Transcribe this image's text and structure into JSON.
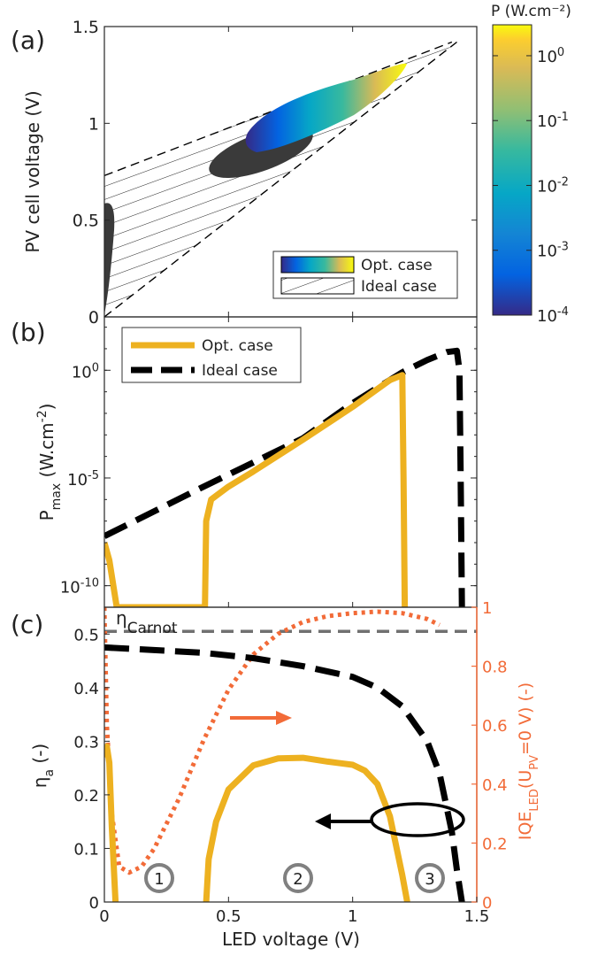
{
  "figure": {
    "x_label": "LED voltage (V)",
    "x_ticks": [
      "0",
      "0.5",
      "1",
      "1.5"
    ]
  },
  "colors": {
    "opt": "#EDB120",
    "ideal": "#000000",
    "iqe": "#F26B38",
    "carnot": "#707070",
    "ellipse_fill": "#3A3A3A"
  },
  "chart_data": [
    {
      "panel_label": "(a)",
      "type": "area",
      "ylabel": "PV cell voltage (V)",
      "xlim": [
        0,
        1.5
      ],
      "ylim": [
        0,
        1.5
      ],
      "y_ticks": [
        "0",
        "0.5",
        "1",
        "1.5"
      ],
      "colorbar": {
        "title": "P (W.cm⁻²)",
        "scale": "log",
        "range": [
          0.0001,
          3
        ],
        "colormap": "parula",
        "tick_values": [
          0.0001,
          0.001,
          0.01,
          0.1,
          1
        ],
        "tick_bases": [
          "10",
          "10",
          "10",
          "10",
          "10"
        ],
        "tick_exps": [
          "-4",
          "-3",
          "-2",
          "-1",
          "0"
        ]
      },
      "legend": {
        "position": "bottom-right",
        "entries": [
          "Opt. case",
          "Ideal case"
        ]
      },
      "ideal_region": {
        "lower_boundary": [
          [
            0,
            0
          ],
          [
            1.42,
            1.42
          ]
        ],
        "upper_boundary": [
          [
            0,
            0.73
          ],
          [
            1.4,
            1.42
          ]
        ]
      },
      "opt_region": [
        {
          "x": 0.04,
          "y_range": [
            0.0,
            0.58
          ]
        },
        {
          "x": 0.4,
          "y_range": [
            0.75,
            0.93
          ]
        },
        {
          "x": 0.7,
          "y_range": [
            0.85,
            1.1
          ]
        },
        {
          "x": 1.0,
          "y_range": [
            1.05,
            1.2
          ]
        },
        {
          "x": 1.2,
          "y_range": [
            1.2,
            1.3
          ]
        }
      ]
    },
    {
      "panel_label": "(b)",
      "type": "line",
      "ylabel_main": "P",
      "ylabel_sub": "max",
      "ylabel_rest": " (W.cm",
      "ylabel_sup": "-2",
      "ylabel_end": ")",
      "yscale": "log",
      "xlim": [
        0,
        1.5
      ],
      "ylim": [
        1e-11,
        300
      ],
      "y_tick_values": [
        1e-10,
        1e-05,
        1
      ],
      "y_tick_bases": [
        "10",
        "10",
        "10"
      ],
      "y_tick_exps": [
        "-10",
        "-5",
        "0"
      ],
      "legend": {
        "position": "top-left",
        "entries": [
          "Opt. case",
          "Ideal case"
        ]
      },
      "series": [
        {
          "name": "Opt. case",
          "points": [
            [
              0,
              1e-08
            ],
            [
              0.02,
              1.5e-09
            ],
            [
              0.05,
              1e-11
            ],
            [
              0.405,
              1e-11
            ],
            [
              0.41,
              1e-07
            ],
            [
              0.43,
              1e-06
            ],
            [
              0.5,
              4e-06
            ],
            [
              0.6,
              2e-05
            ],
            [
              0.8,
              0.0006
            ],
            [
              1.0,
              0.02
            ],
            [
              1.15,
              0.35
            ],
            [
              1.2,
              0.6
            ],
            [
              1.205,
              1e-05
            ],
            [
              1.21,
              1e-11
            ]
          ]
        },
        {
          "name": "Ideal case",
          "points": [
            [
              0,
              2e-08
            ],
            [
              0.4,
              4e-06
            ],
            [
              0.8,
              0.0007
            ],
            [
              1.0,
              0.03
            ],
            [
              1.2,
              0.8
            ],
            [
              1.3,
              3
            ],
            [
              1.38,
              7
            ],
            [
              1.42,
              8
            ],
            [
              1.43,
              1
            ],
            [
              1.435,
              1e-05
            ],
            [
              1.44,
              1e-11
            ]
          ]
        }
      ]
    },
    {
      "panel_label": "(c)",
      "type": "line",
      "ylabel_main": "η",
      "ylabel_sub": "a",
      "ylabel_end": " (-)",
      "y2label_main": "IQE",
      "y2label_sub1": "LED",
      "y2label_mid": "(U",
      "y2label_sub2": "PV",
      "y2label_end": "=0 V) (-)",
      "carnot_label": "η",
      "carnot_sub": "Carnot",
      "xlim": [
        0,
        1.5
      ],
      "ylim": [
        0,
        0.55
      ],
      "y2lim": [
        0,
        1
      ],
      "y_ticks": [
        "0",
        "0.1",
        "0.2",
        "0.3",
        "0.4",
        "0.5"
      ],
      "y2_ticks": [
        "0",
        "0.2",
        "0.4",
        "0.6",
        "0.8",
        "1"
      ],
      "annotations": [
        "1",
        "2",
        "3"
      ],
      "series": [
        {
          "name": "Opt. case",
          "segments": [
            [
              [
                0,
                0.27
              ],
              [
                0.01,
                0.29
              ],
              [
                0.02,
                0.26
              ],
              [
                0.03,
                0.14
              ],
              [
                0.045,
                0
              ]
            ],
            [
              [
                0.41,
                0
              ],
              [
                0.42,
                0.08
              ],
              [
                0.45,
                0.15
              ],
              [
                0.5,
                0.21
              ],
              [
                0.6,
                0.255
              ],
              [
                0.7,
                0.268
              ],
              [
                0.8,
                0.269
              ],
              [
                0.9,
                0.262
              ],
              [
                1.0,
                0.256
              ],
              [
                1.05,
                0.245
              ],
              [
                1.1,
                0.22
              ],
              [
                1.15,
                0.16
              ],
              [
                1.2,
                0.05
              ],
              [
                1.22,
                0
              ]
            ]
          ]
        },
        {
          "name": "Ideal case",
          "points": [
            [
              0,
              0.475
            ],
            [
              0.2,
              0.47
            ],
            [
              0.4,
              0.465
            ],
            [
              0.6,
              0.455
            ],
            [
              0.8,
              0.44
            ],
            [
              1.0,
              0.42
            ],
            [
              1.1,
              0.4
            ],
            [
              1.2,
              0.365
            ],
            [
              1.3,
              0.3
            ],
            [
              1.35,
              0.24
            ],
            [
              1.4,
              0.13
            ],
            [
              1.42,
              0.06
            ],
            [
              1.44,
              0
            ]
          ]
        },
        {
          "name": "IQE",
          "axis": "right",
          "points": [
            [
              0,
              1.0
            ],
            [
              0.01,
              0.6
            ],
            [
              0.03,
              0.3
            ],
            [
              0.06,
              0.12
            ],
            [
              0.1,
              0.1
            ],
            [
              0.15,
              0.12
            ],
            [
              0.2,
              0.18
            ],
            [
              0.3,
              0.35
            ],
            [
              0.4,
              0.55
            ],
            [
              0.5,
              0.72
            ],
            [
              0.6,
              0.84
            ],
            [
              0.7,
              0.91
            ],
            [
              0.8,
              0.95
            ],
            [
              0.9,
              0.97
            ],
            [
              1.0,
              0.98
            ],
            [
              1.1,
              0.985
            ],
            [
              1.2,
              0.98
            ],
            [
              1.3,
              0.96
            ],
            [
              1.35,
              0.94
            ]
          ]
        },
        {
          "name": "Carnot",
          "points": [
            [
              0,
              0.505
            ],
            [
              1.5,
              0.505
            ]
          ]
        }
      ]
    }
  ]
}
